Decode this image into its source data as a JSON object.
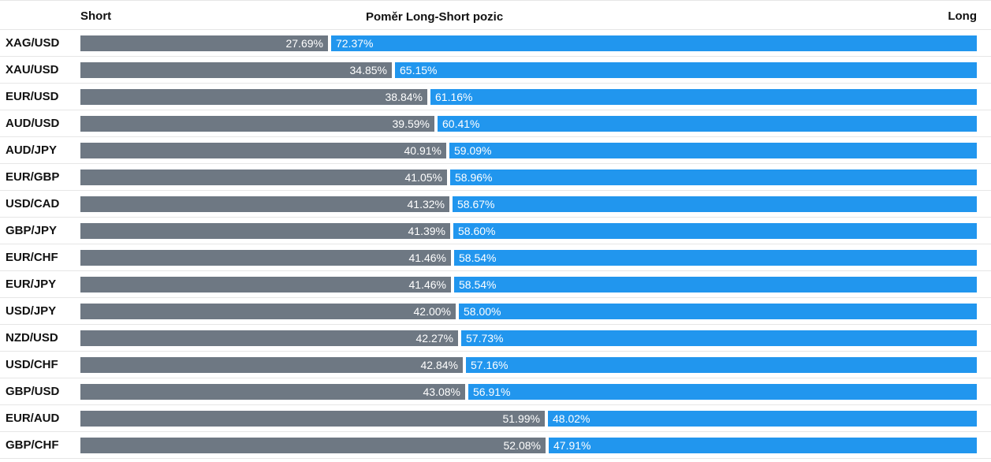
{
  "header": {
    "short_label": "Short",
    "title": "Poměr Long-Short pozic",
    "long_label": "Long"
  },
  "colors": {
    "short": "#6e7883",
    "long": "#2196ee"
  },
  "chart_data": {
    "type": "bar",
    "stacked": true,
    "orientation": "horizontal",
    "title": "Poměr Long-Short pozic",
    "categories": [
      "XAG/USD",
      "XAU/USD",
      "EUR/USD",
      "AUD/USD",
      "AUD/JPY",
      "EUR/GBP",
      "USD/CAD",
      "GBP/JPY",
      "EUR/CHF",
      "EUR/JPY",
      "USD/JPY",
      "NZD/USD",
      "USD/CHF",
      "GBP/USD",
      "EUR/AUD",
      "GBP/CHF"
    ],
    "series": [
      {
        "name": "Short",
        "values": [
          27.69,
          34.85,
          38.84,
          39.59,
          40.91,
          41.05,
          41.32,
          41.39,
          41.46,
          41.46,
          42.0,
          42.27,
          42.84,
          43.08,
          51.99,
          52.08
        ]
      },
      {
        "name": "Long",
        "values": [
          72.37,
          65.15,
          61.16,
          60.41,
          59.09,
          58.96,
          58.67,
          58.6,
          58.54,
          58.54,
          58.0,
          57.73,
          57.16,
          56.91,
          48.02,
          47.91
        ]
      }
    ],
    "labels": {
      "short": [
        "27.69%",
        "34.85%",
        "38.84%",
        "39.59%",
        "40.91%",
        "41.05%",
        "41.32%",
        "41.39%",
        "41.46%",
        "41.46%",
        "42.00%",
        "42.27%",
        "42.84%",
        "43.08%",
        "51.99%",
        "52.08%"
      ],
      "long": [
        "72.37%",
        "65.15%",
        "61.16%",
        "60.41%",
        "59.09%",
        "58.96%",
        "58.67%",
        "58.60%",
        "58.54%",
        "58.54%",
        "58.00%",
        "57.73%",
        "57.16%",
        "56.91%",
        "48.02%",
        "47.91%"
      ]
    }
  }
}
